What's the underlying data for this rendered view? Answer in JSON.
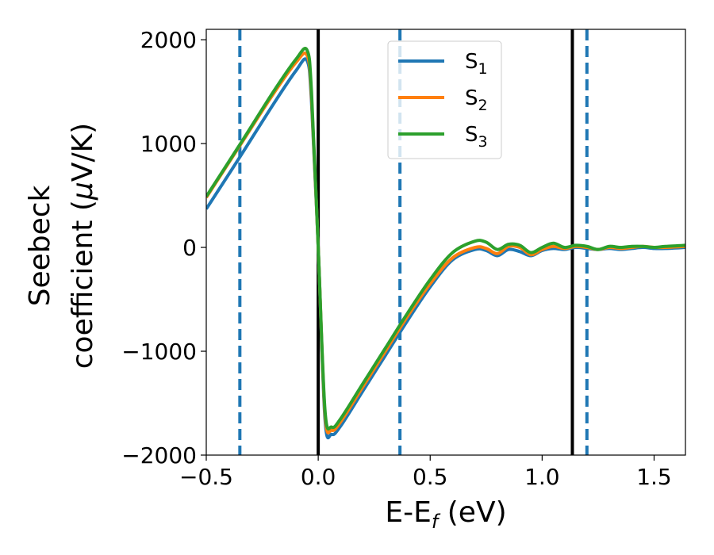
{
  "chart_data": {
    "type": "line",
    "xlabel_main": "E-E",
    "xlabel_sub": "f",
    "xlabel_unit": " (eV)",
    "ylabel_line1": "Seebeck",
    "ylabel_line2_prefix": "coefficient  (",
    "ylabel_mu": "μ",
    "ylabel_line2_suffix": "V/K)",
    "xlim": [
      -0.5,
      1.64
    ],
    "ylim": [
      -2000,
      2100
    ],
    "xticks": [
      -0.5,
      0.0,
      0.5,
      1.0,
      1.5
    ],
    "xtick_labels": [
      "−0.5",
      "0.0",
      "0.5",
      "1.0",
      "1.5"
    ],
    "yticks": [
      -2000,
      -1000,
      0,
      1000,
      2000
    ],
    "ytick_labels": [
      "−2000",
      "−1000",
      "0",
      "1000",
      "2000"
    ],
    "legend_position": "top-center",
    "vlines_solid": [
      0.0,
      1.135
    ],
    "vlines_dashed": [
      -0.35,
      0.365,
      1.2
    ],
    "series": [
      {
        "name": "S",
        "sub": "1",
        "color": "#1f77b4",
        "x": [
          -0.5,
          -0.35,
          -0.2,
          -0.1,
          -0.05,
          -0.03,
          0.0,
          0.03,
          0.06,
          0.1,
          0.2,
          0.3,
          0.4,
          0.5,
          0.6,
          0.7,
          0.75,
          0.8,
          0.85,
          0.9,
          0.95,
          1.0,
          1.05,
          1.1,
          1.15,
          1.2,
          1.25,
          1.3,
          1.35,
          1.4,
          1.45,
          1.5,
          1.55,
          1.64
        ],
        "values": [
          370,
          870,
          1380,
          1700,
          1800,
          1400,
          0,
          -1650,
          -1800,
          -1720,
          -1380,
          -1040,
          -700,
          -380,
          -120,
          -20,
          -30,
          -80,
          -20,
          -40,
          -80,
          -30,
          -10,
          -20,
          0,
          -10,
          -20,
          -10,
          -20,
          -10,
          0,
          -10,
          -10,
          0
        ]
      },
      {
        "name": "S",
        "sub": "2",
        "color": "#ff7f0e",
        "x": [
          -0.5,
          -0.35,
          -0.2,
          -0.1,
          -0.05,
          -0.03,
          0.0,
          0.03,
          0.06,
          0.1,
          0.2,
          0.3,
          0.4,
          0.5,
          0.6,
          0.7,
          0.75,
          0.8,
          0.85,
          0.9,
          0.95,
          1.0,
          1.05,
          1.1,
          1.15,
          1.2,
          1.25,
          1.3,
          1.35,
          1.4,
          1.45,
          1.5,
          1.55,
          1.64
        ],
        "values": [
          480,
          980,
          1480,
          1780,
          1850,
          1450,
          0,
          -1600,
          -1760,
          -1680,
          -1340,
          -1000,
          -660,
          -350,
          -100,
          0,
          -10,
          -60,
          10,
          0,
          -70,
          -20,
          10,
          -10,
          10,
          0,
          -20,
          0,
          -10,
          0,
          10,
          0,
          0,
          10
        ]
      },
      {
        "name": "S",
        "sub": "3",
        "color": "#2ca02c",
        "x": [
          -0.5,
          -0.35,
          -0.2,
          -0.1,
          -0.05,
          -0.03,
          0.0,
          0.03,
          0.06,
          0.1,
          0.2,
          0.3,
          0.4,
          0.5,
          0.6,
          0.7,
          0.75,
          0.8,
          0.85,
          0.9,
          0.95,
          1.0,
          1.05,
          1.1,
          1.15,
          1.2,
          1.25,
          1.3,
          1.35,
          1.4,
          1.45,
          1.5,
          1.55,
          1.64
        ],
        "values": [
          490,
          990,
          1500,
          1810,
          1900,
          1500,
          0,
          -1560,
          -1730,
          -1650,
          -1310,
          -970,
          -630,
          -310,
          -50,
          60,
          50,
          -20,
          30,
          20,
          -50,
          0,
          40,
          0,
          20,
          10,
          -20,
          10,
          0,
          10,
          10,
          0,
          10,
          20
        ]
      }
    ]
  }
}
